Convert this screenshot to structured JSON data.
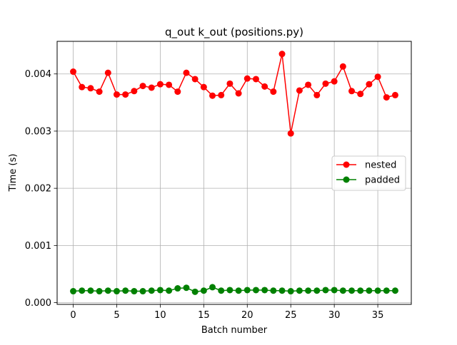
{
  "chart_data": {
    "type": "line",
    "title": "q_out k_out (positions.py)",
    "xlabel": "Batch number",
    "ylabel": "Time (s)",
    "xlim": [
      -1.85,
      38.85
    ],
    "ylim": [
      -3e-05,
      0.00457
    ],
    "xticks": [
      0,
      5,
      10,
      15,
      20,
      25,
      30,
      35
    ],
    "xtick_labels": [
      "0",
      "5",
      "10",
      "15",
      "20",
      "25",
      "30",
      "35"
    ],
    "yticks": [
      0.0,
      0.001,
      0.002,
      0.003,
      0.004
    ],
    "ytick_labels": [
      "0.000",
      "0.001",
      "0.002",
      "0.003",
      "0.004"
    ],
    "grid": true,
    "legend_position": "center-right",
    "x": [
      0,
      1,
      2,
      3,
      4,
      5,
      6,
      7,
      8,
      9,
      10,
      11,
      12,
      13,
      14,
      15,
      16,
      17,
      18,
      19,
      20,
      21,
      22,
      23,
      24,
      25,
      26,
      27,
      28,
      29,
      30,
      31,
      32,
      33,
      34,
      35,
      36,
      37
    ],
    "series": [
      {
        "name": "nested",
        "color": "#ff0000",
        "marker": "circle",
        "values": [
          0.00404,
          0.00377,
          0.00375,
          0.00369,
          0.00402,
          0.00364,
          0.00364,
          0.0037,
          0.00379,
          0.00376,
          0.00382,
          0.00381,
          0.00369,
          0.00402,
          0.00391,
          0.00377,
          0.00362,
          0.00363,
          0.00383,
          0.00366,
          0.00392,
          0.00391,
          0.00378,
          0.00369,
          0.00435,
          0.00296,
          0.00371,
          0.00381,
          0.00363,
          0.00383,
          0.00387,
          0.00413,
          0.0037,
          0.00365,
          0.00382,
          0.00395,
          0.00359,
          0.00363
        ]
      },
      {
        "name": "padded",
        "color": "#008000",
        "marker": "circle",
        "values": [
          0.0002,
          0.00021,
          0.00021,
          0.0002,
          0.00021,
          0.0002,
          0.00021,
          0.0002,
          0.0002,
          0.00021,
          0.00022,
          0.00021,
          0.00025,
          0.00026,
          0.00019,
          0.00021,
          0.00027,
          0.00021,
          0.00022,
          0.00021,
          0.00022,
          0.00022,
          0.00022,
          0.00021,
          0.00021,
          0.0002,
          0.00021,
          0.00021,
          0.00021,
          0.00022,
          0.00022,
          0.00021,
          0.00021,
          0.00021,
          0.00021,
          0.00021,
          0.00021,
          0.00021
        ]
      }
    ]
  }
}
